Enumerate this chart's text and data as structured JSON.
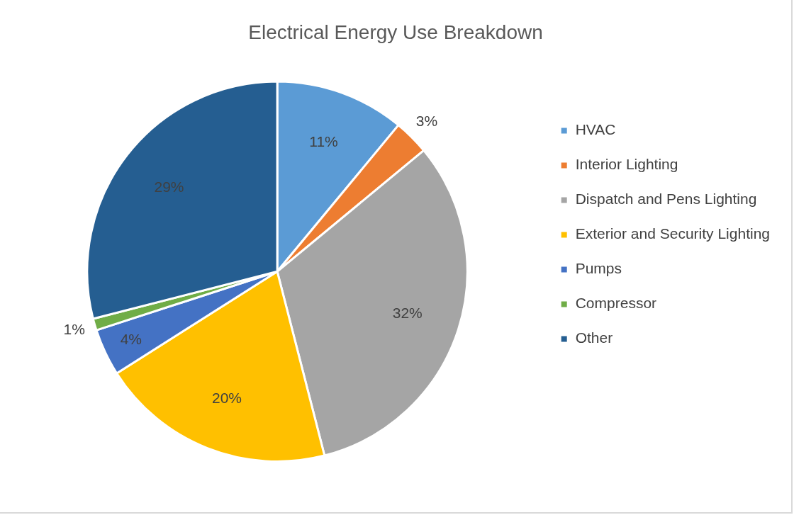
{
  "chart_data": {
    "type": "pie",
    "title": "Electrical Energy Use Breakdown",
    "categories": [
      "HVAC",
      "Interior Lighting",
      "Dispatch and Pens Lighting",
      "Exterior and Security Lighting",
      "Pumps",
      "Compressor",
      "Other"
    ],
    "values": [
      11,
      3,
      32,
      20,
      4,
      1,
      29
    ],
    "colors": [
      "#5b9bd5",
      "#ed7d31",
      "#a5a5a5",
      "#ffc000",
      "#4472c4",
      "#70ad47",
      "#255e91"
    ],
    "value_labels": [
      "11%",
      "3%",
      "32%",
      "20%",
      "4%",
      "1%",
      "29%"
    ],
    "legend": "right"
  }
}
